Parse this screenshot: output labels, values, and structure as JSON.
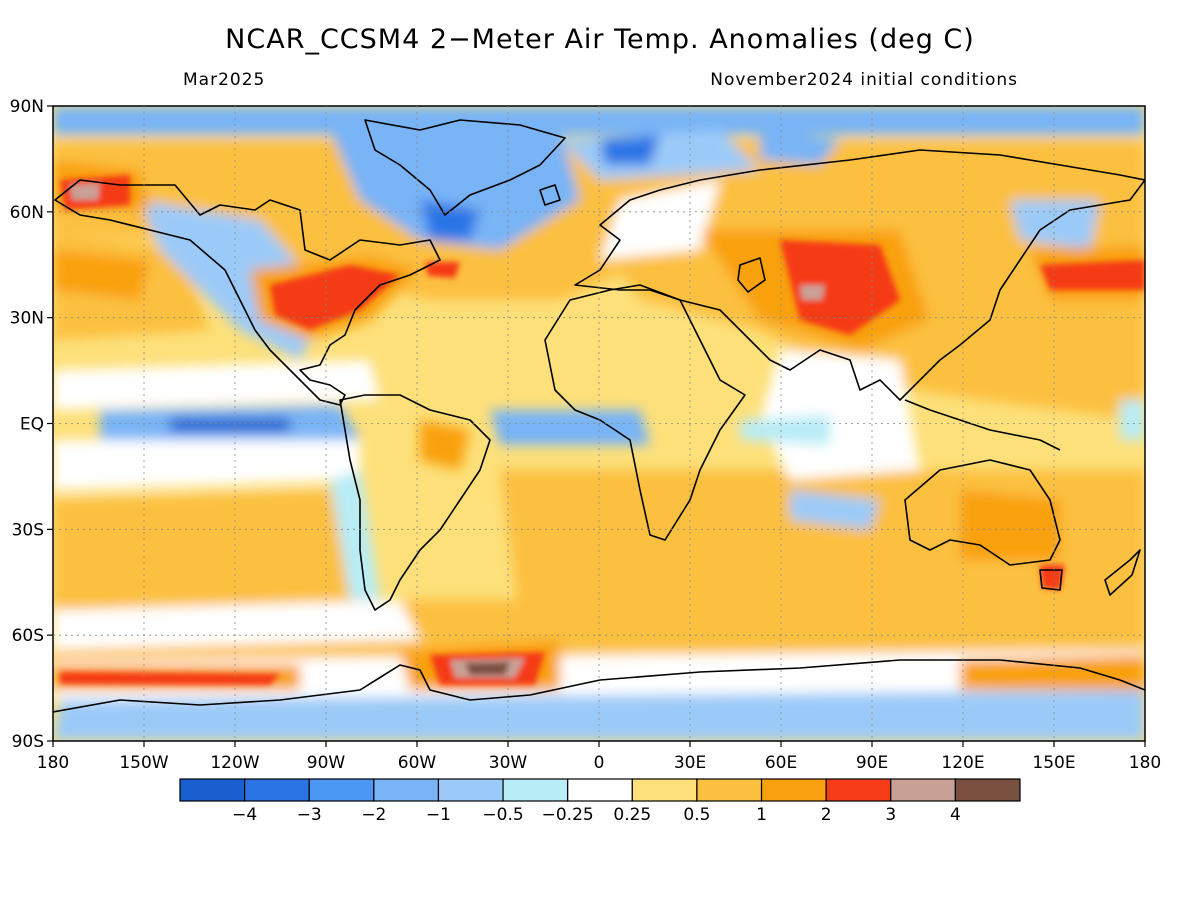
{
  "title": "NCAR_CCSM4 2−Meter Air Temp. Anomalies (deg C)",
  "valid_month": "Mar2025",
  "init_conditions": "November2024 initial conditions",
  "axes": {
    "lat_labels": [
      "90N",
      "60N",
      "30N",
      "EQ",
      "30S",
      "60S",
      "90S"
    ],
    "lon_labels": [
      "180",
      "150W",
      "120W",
      "90W",
      "60W",
      "30W",
      "0",
      "30E",
      "60E",
      "90E",
      "120E",
      "150E",
      "180"
    ]
  },
  "colorbar": {
    "colors": [
      "#1a5fd0",
      "#2a74e6",
      "#4a98f4",
      "#78b4f6",
      "#9ccaf8",
      "#b8ecf6",
      "#ffffff",
      "#fde07a",
      "#fcc040",
      "#f9a010",
      "#f53b18",
      "#c9a095",
      "#7a5040"
    ],
    "labels": [
      "−4",
      "−3",
      "−2",
      "−1",
      "−0.5",
      "−0.25",
      "0.25",
      "0.5",
      "1",
      "2",
      "3",
      "4"
    ]
  },
  "map_colors": {
    "ocean_polar_cold": "#78b4f6",
    "land_outline": "#000000"
  }
}
